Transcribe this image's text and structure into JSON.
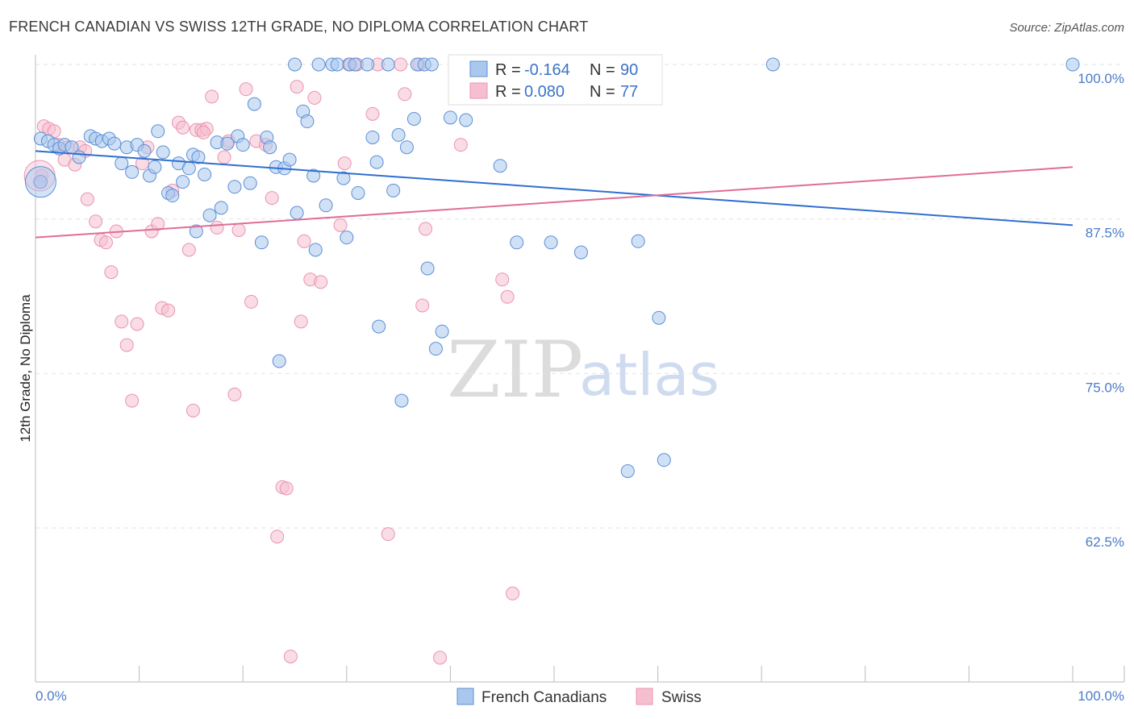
{
  "chart_data": {
    "type": "scatter",
    "title": "FRENCH CANADIAN VS SWISS 12TH GRADE, NO DIPLOMA CORRELATION CHART",
    "source": "Source: ZipAtlas.com",
    "xlabel": "",
    "ylabel": "12th Grade, No Diploma",
    "xlim": [
      0,
      100
    ],
    "ylim": [
      51.5,
      102
    ],
    "x_tick_labels": [
      "0.0%",
      "100.0%"
    ],
    "y_ticks": [
      62.5,
      75.0,
      87.5,
      100.0
    ],
    "y_tick_labels": [
      "62.5%",
      "75.0%",
      "87.5%",
      "100.0%"
    ],
    "grid": true,
    "watermark": {
      "zip": "ZIP",
      "atlas": "atlas"
    },
    "colors": {
      "french_fill": "#aac8ee",
      "french_stroke": "#5b8fd6",
      "french_line": "#2f6fcf",
      "swiss_fill": "#f6bfd0",
      "swiss_stroke": "#e994b0",
      "swiss_line": "#e06d98",
      "tick_color": "#4a7cc9"
    },
    "legend": {
      "rows": [
        {
          "r_label": "R =",
          "r_value": "-0.164",
          "n_label": "N =",
          "n_value": "90"
        },
        {
          "r_label": "R =",
          "r_value": "0.080",
          "n_label": "N =",
          "n_value": "77"
        }
      ]
    },
    "series": [
      {
        "name": "French Canadians",
        "trend": {
          "x": [
            0,
            100
          ],
          "y": [
            93.0,
            87.0
          ]
        },
        "points": [
          [
            0.5,
            94.0
          ],
          [
            1.2,
            93.8
          ],
          [
            1.8,
            93.5
          ],
          [
            2.3,
            93.2
          ],
          [
            2.8,
            93.5
          ],
          [
            3.5,
            93.3
          ],
          [
            4.2,
            92.5
          ],
          [
            5.3,
            94.2
          ],
          [
            5.8,
            94.0
          ],
          [
            6.4,
            93.8
          ],
          [
            7.1,
            94.0
          ],
          [
            7.6,
            93.6
          ],
          [
            8.3,
            92.0
          ],
          [
            8.8,
            93.3
          ],
          [
            9.3,
            91.3
          ],
          [
            9.8,
            93.5
          ],
          [
            10.5,
            93.0
          ],
          [
            11.0,
            91.0
          ],
          [
            11.5,
            91.7
          ],
          [
            11.8,
            94.6
          ],
          [
            12.3,
            92.9
          ],
          [
            12.8,
            89.6
          ],
          [
            13.2,
            89.4
          ],
          [
            13.8,
            92.0
          ],
          [
            14.2,
            90.5
          ],
          [
            14.8,
            91.6
          ],
          [
            15.2,
            92.7
          ],
          [
            15.7,
            92.5
          ],
          [
            16.3,
            91.1
          ],
          [
            16.8,
            87.8
          ],
          [
            17.5,
            93.7
          ],
          [
            17.9,
            88.4
          ],
          [
            18.5,
            93.6
          ],
          [
            19.2,
            90.1
          ],
          [
            19.5,
            94.2
          ],
          [
            20.0,
            93.5
          ],
          [
            20.7,
            90.4
          ],
          [
            21.1,
            96.8
          ],
          [
            21.8,
            85.6
          ],
          [
            22.3,
            94.1
          ],
          [
            22.6,
            93.3
          ],
          [
            23.2,
            91.7
          ],
          [
            24.0,
            91.6
          ],
          [
            24.5,
            92.3
          ],
          [
            25.0,
            100.0
          ],
          [
            25.2,
            88.0
          ],
          [
            25.8,
            96.2
          ],
          [
            26.2,
            95.4
          ],
          [
            26.8,
            91.0
          ],
          [
            27.3,
            100.0
          ],
          [
            28.0,
            88.6
          ],
          [
            28.6,
            100.0
          ],
          [
            29.1,
            100.0
          ],
          [
            29.7,
            90.8
          ],
          [
            30.3,
            100.0
          ],
          [
            30.8,
            100.0
          ],
          [
            31.1,
            89.6
          ],
          [
            32.0,
            100.0
          ],
          [
            32.5,
            94.1
          ],
          [
            32.9,
            92.1
          ],
          [
            33.1,
            78.8
          ],
          [
            34.0,
            100.0
          ],
          [
            34.5,
            89.8
          ],
          [
            35.0,
            94.3
          ],
          [
            35.3,
            72.8
          ],
          [
            35.8,
            93.3
          ],
          [
            36.5,
            95.6
          ],
          [
            36.8,
            100.0
          ],
          [
            37.5,
            100.0
          ],
          [
            37.8,
            83.5
          ],
          [
            38.2,
            100.0
          ],
          [
            38.6,
            77.0
          ],
          [
            39.2,
            78.4
          ],
          [
            40.0,
            95.7
          ],
          [
            41.5,
            95.5
          ],
          [
            44.8,
            91.8
          ],
          [
            46.4,
            85.6
          ],
          [
            49.7,
            85.6
          ],
          [
            52.6,
            84.8
          ],
          [
            57.1,
            67.1
          ],
          [
            58.1,
            85.7
          ],
          [
            60.1,
            79.5
          ],
          [
            60.6,
            68.0
          ],
          [
            71.1,
            100.0
          ],
          [
            100.0,
            100.0
          ],
          [
            0.5,
            90.5
          ],
          [
            15.5,
            86.5
          ],
          [
            23.5,
            76.0
          ],
          [
            30.0,
            86.0
          ],
          [
            27.0,
            85.0
          ]
        ]
      },
      {
        "name": "Swiss",
        "trend": {
          "x": [
            0,
            100
          ],
          "y": [
            86.0,
            91.7
          ]
        },
        "points": [
          [
            0.4,
            90.5
          ],
          [
            0.8,
            95.0
          ],
          [
            1.3,
            94.8
          ],
          [
            1.8,
            94.6
          ],
          [
            2.2,
            93.5
          ],
          [
            2.8,
            92.3
          ],
          [
            3.1,
            93.3
          ],
          [
            3.8,
            91.9
          ],
          [
            4.3,
            93.3
          ],
          [
            4.8,
            93.0
          ],
          [
            5.0,
            89.1
          ],
          [
            5.8,
            87.3
          ],
          [
            6.3,
            85.8
          ],
          [
            6.8,
            85.6
          ],
          [
            7.3,
            83.2
          ],
          [
            7.8,
            86.5
          ],
          [
            8.3,
            79.2
          ],
          [
            8.8,
            77.3
          ],
          [
            9.3,
            72.8
          ],
          [
            9.8,
            79.0
          ],
          [
            10.3,
            92.0
          ],
          [
            10.8,
            93.3
          ],
          [
            11.2,
            86.5
          ],
          [
            11.8,
            87.1
          ],
          [
            12.2,
            80.3
          ],
          [
            12.8,
            80.1
          ],
          [
            13.2,
            89.8
          ],
          [
            13.8,
            95.3
          ],
          [
            14.2,
            94.9
          ],
          [
            14.8,
            85.0
          ],
          [
            15.2,
            72.0
          ],
          [
            15.5,
            94.7
          ],
          [
            16.0,
            94.7
          ],
          [
            16.5,
            94.8
          ],
          [
            17.0,
            97.4
          ],
          [
            17.5,
            86.8
          ],
          [
            18.2,
            92.5
          ],
          [
            18.6,
            93.8
          ],
          [
            19.2,
            73.3
          ],
          [
            19.6,
            86.6
          ],
          [
            20.3,
            98.0
          ],
          [
            20.8,
            80.8
          ],
          [
            21.3,
            93.8
          ],
          [
            22.2,
            93.5
          ],
          [
            22.8,
            89.2
          ],
          [
            23.3,
            61.8
          ],
          [
            23.8,
            65.8
          ],
          [
            24.2,
            65.7
          ],
          [
            24.6,
            52.1
          ],
          [
            25.2,
            98.2
          ],
          [
            25.6,
            79.2
          ],
          [
            25.9,
            85.7
          ],
          [
            26.5,
            82.6
          ],
          [
            26.9,
            97.3
          ],
          [
            27.5,
            82.4
          ],
          [
            29.4,
            87.0
          ],
          [
            29.8,
            92.0
          ],
          [
            30.2,
            100.0
          ],
          [
            31.0,
            100.0
          ],
          [
            32.5,
            96.0
          ],
          [
            33.0,
            100.0
          ],
          [
            34.0,
            62.0
          ],
          [
            35.2,
            100.0
          ],
          [
            35.6,
            97.6
          ],
          [
            37.0,
            100.0
          ],
          [
            37.3,
            80.5
          ],
          [
            37.6,
            86.7
          ],
          [
            39.0,
            52.0
          ],
          [
            40.5,
            100.0
          ],
          [
            41.0,
            93.5
          ],
          [
            42.0,
            100.0
          ],
          [
            45.0,
            82.6
          ],
          [
            45.5,
            81.2
          ],
          [
            46.0,
            57.2
          ],
          [
            48.0,
            100.0
          ],
          [
            0.6,
            91.0
          ],
          [
            16.2,
            94.5
          ]
        ]
      }
    ]
  },
  "bottom_legend": [
    "French Canadians",
    "Swiss"
  ]
}
